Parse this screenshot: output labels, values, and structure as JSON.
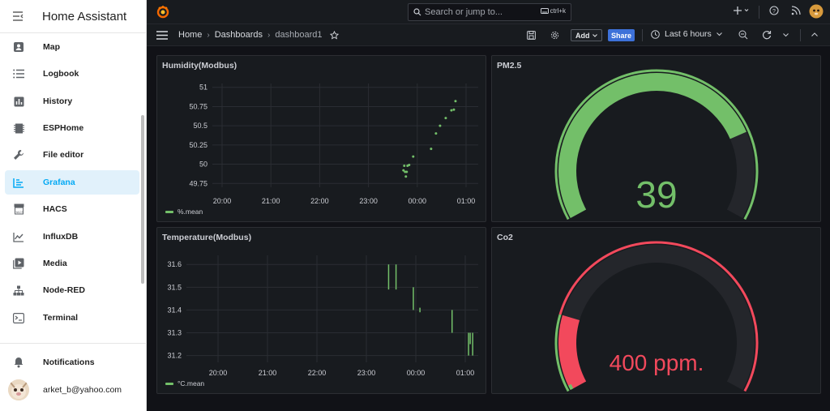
{
  "sidebar": {
    "title": "Home Assistant",
    "items": [
      {
        "label": "Map",
        "icon": "map-icon",
        "active": false
      },
      {
        "label": "Logbook",
        "icon": "logbook-icon",
        "active": false
      },
      {
        "label": "History",
        "icon": "history-chart-icon",
        "active": false
      },
      {
        "label": "ESPHome",
        "icon": "esphome-chip-icon",
        "active": false
      },
      {
        "label": "File editor",
        "icon": "wrench-icon",
        "active": false
      },
      {
        "label": "Grafana",
        "icon": "grafana-icon",
        "active": true
      },
      {
        "label": "HACS",
        "icon": "hacs-icon",
        "active": false
      },
      {
        "label": "InfluxDB",
        "icon": "influxdb-chart-icon",
        "active": false
      },
      {
        "label": "Media",
        "icon": "media-play-icon",
        "active": false
      },
      {
        "label": "Node-RED",
        "icon": "sitemap-icon",
        "active": false
      },
      {
        "label": "Terminal",
        "icon": "terminal-icon",
        "active": false
      }
    ],
    "notifications_label": "Notifications",
    "user_email": "arket_b@yahoo.com"
  },
  "topbar": {
    "search_placeholder": "Search or jump to...",
    "shortcut": "ctrl+k"
  },
  "navbar": {
    "breadcrumbs": [
      "Home",
      "Dashboards",
      "dashboard1"
    ],
    "add_label": "Add",
    "share_label": "Share",
    "time_range": "Last 6 hours"
  },
  "colors": {
    "green": "#73bf69",
    "red": "#f2495c",
    "panel_bg": "#181b1f",
    "page_bg": "#111217",
    "accent": "#03a9f4"
  },
  "panels": {
    "humidity_title": "Humidity(Modbus)",
    "humidity_legend": "%.mean",
    "temperature_title": "Temperature(Modbus)",
    "temperature_legend": "°C.mean",
    "pm25_title": "PM2.5",
    "co2_title": "Co2"
  },
  "chart_data": [
    {
      "type": "scatter",
      "title": "Humidity(Modbus)",
      "series": [
        {
          "name": "%.mean",
          "points": [
            [
              "23:43",
              49.92
            ],
            [
              "23:44",
              49.98
            ],
            [
              "23:45",
              49.9
            ],
            [
              "23:46",
              49.84
            ],
            [
              "23:47",
              49.9
            ],
            [
              "23:48",
              49.98
            ],
            [
              "23:50",
              49.99
            ],
            [
              "23:55",
              50.1
            ],
            [
              "00:17",
              50.2
            ],
            [
              "00:23",
              50.4
            ],
            [
              "00:28",
              50.5
            ],
            [
              "00:35",
              50.6
            ],
            [
              "00:42",
              50.7
            ],
            [
              "00:45",
              50.71
            ],
            [
              "00:47",
              50.82
            ]
          ]
        }
      ],
      "x_ticks": [
        "20:00",
        "21:00",
        "22:00",
        "23:00",
        "00:00",
        "01:00"
      ],
      "y_ticks": [
        49.75,
        50,
        50.25,
        50.5,
        50.75,
        51
      ],
      "ylim": [
        49.7,
        51.05
      ]
    },
    {
      "type": "line",
      "title": "Temperature(Modbus)",
      "series": [
        {
          "name": "°C.mean",
          "segments": [
            [
              "23:27",
              31.49,
              31.6
            ],
            [
              "23:36",
              31.49,
              31.6
            ],
            [
              "23:57",
              31.4,
              31.5
            ],
            [
              "00:05",
              31.39,
              31.41
            ],
            [
              "00:44",
              31.3,
              31.4
            ],
            [
              "01:04",
              31.2,
              31.3
            ],
            [
              "01:06",
              31.25,
              31.3
            ],
            [
              "01:09",
              31.2,
              31.3
            ]
          ]
        }
      ],
      "x_ticks": [
        "20:00",
        "21:00",
        "22:00",
        "23:00",
        "00:00",
        "01:00"
      ],
      "y_ticks": [
        31.2,
        31.3,
        31.4,
        31.5,
        31.6
      ],
      "ylim": [
        31.17,
        31.64
      ]
    },
    {
      "type": "gauge",
      "title": "PM2.5",
      "value": 39,
      "display": "39",
      "min": 0,
      "max": 50,
      "threshold_color": "#73bf69"
    },
    {
      "type": "gauge",
      "title": "Co2",
      "value": 400,
      "display": "400 ppm.",
      "threshold_fraction": 0.19,
      "threshold_color": "#f2495c",
      "base_color": "#73bf69"
    }
  ]
}
